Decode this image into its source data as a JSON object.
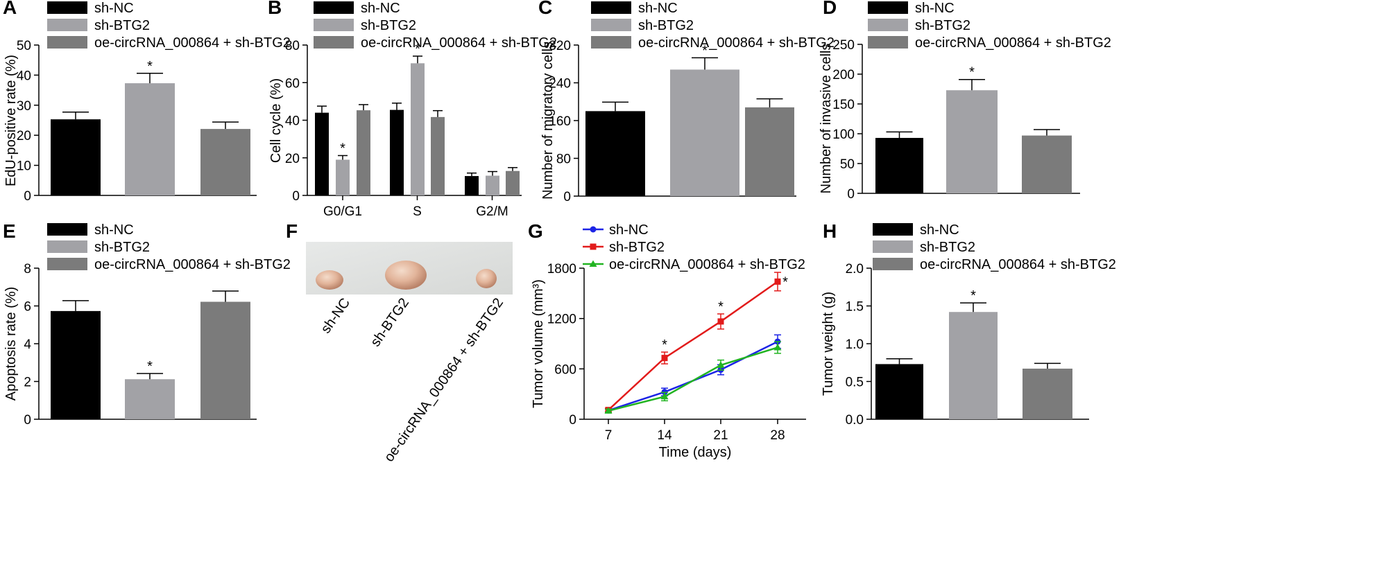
{
  "colors": {
    "sh_NC": "#000000",
    "sh_BTG2": "#a2a2a6",
    "oe_combo": "#7b7b7b",
    "line_sh_NC": "#1c24e6",
    "line_sh_BTG2": "#e21b1b",
    "line_oe_combo": "#22b422"
  },
  "legend_labels": [
    "sh-NC",
    "sh-BTG2",
    "oe-circRNA_000864 + sh-BTG2"
  ],
  "chart_data": [
    {
      "panel": "A",
      "type": "bar",
      "ylabel": "EdU-positive rate (%)",
      "ylim": [
        0,
        50
      ],
      "yticks": [
        0,
        10,
        20,
        30,
        40,
        50
      ],
      "categories": [
        "sh-NC",
        "sh-BTG2",
        "oe-circRNA_000864 + sh-BTG2"
      ],
      "values": [
        25.3,
        37.3,
        22.1
      ],
      "errors": [
        2.4,
        3.3,
        2.3
      ],
      "significance": [
        "",
        "*",
        ""
      ]
    },
    {
      "panel": "B",
      "type": "bar",
      "ylabel": "Cell cycle (%)",
      "ylim": [
        0,
        80
      ],
      "yticks": [
        0,
        20,
        40,
        60,
        80
      ],
      "categories": [
        "G0/G1",
        "S",
        "G2/M"
      ],
      "series": [
        {
          "name": "sh-NC",
          "values": [
            44,
            45.5,
            10.3
          ],
          "errors": [
            3.5,
            3.6,
            1.6
          ],
          "significance": [
            "",
            "",
            ""
          ]
        },
        {
          "name": "sh-BTG2",
          "values": [
            19,
            70.3,
            10.5
          ],
          "errors": [
            2.2,
            3.8,
            2.2
          ],
          "significance": [
            "*",
            "*",
            ""
          ]
        },
        {
          "name": "oe-circRNA_000864 + sh-BTG2",
          "values": [
            45.3,
            41.7,
            13
          ],
          "errors": [
            3.0,
            3.4,
            1.8
          ],
          "significance": [
            "",
            "",
            ""
          ]
        }
      ]
    },
    {
      "panel": "C",
      "type": "bar",
      "ylabel": "Number of migratory cells",
      "ylim": [
        0,
        320
      ],
      "yticks": [
        0,
        80,
        160,
        240,
        320
      ],
      "categories": [
        "sh-NC",
        "sh-BTG2",
        "oe-circRNA_000864 + sh-BTG2"
      ],
      "values": [
        180,
        268,
        188
      ],
      "errors": [
        19,
        25,
        18
      ],
      "significance": [
        "",
        "*",
        ""
      ]
    },
    {
      "panel": "D",
      "type": "bar",
      "ylabel": "Number of invasive cells",
      "ylim": [
        0,
        250
      ],
      "yticks": [
        0,
        50,
        100,
        150,
        200,
        250
      ],
      "categories": [
        "sh-NC",
        "sh-BTG2",
        "oe-circRNA_000864 + sh-BTG2"
      ],
      "values": [
        93,
        173,
        97
      ],
      "errors": [
        10,
        18,
        10
      ],
      "significance": [
        "",
        "*",
        ""
      ]
    },
    {
      "panel": "E",
      "type": "bar",
      "ylabel": "Apoptosis rate (%)",
      "ylim": [
        0,
        8
      ],
      "yticks": [
        0,
        2,
        4,
        6,
        8
      ],
      "categories": [
        "sh-NC",
        "sh-BTG2",
        "oe-circRNA_000864 + sh-BTG2"
      ],
      "values": [
        5.73,
        2.12,
        6.22
      ],
      "errors": [
        0.55,
        0.3,
        0.57
      ],
      "significance": [
        "",
        "*",
        ""
      ]
    },
    {
      "panel": "G",
      "type": "line",
      "xlabel": "Time (days)",
      "ylabel": "Tumor volume (mm³)",
      "ylim": [
        0,
        1800
      ],
      "yticks": [
        0,
        600,
        1200,
        1800
      ],
      "x": [
        7,
        14,
        21,
        28
      ],
      "series": [
        {
          "name": "sh-NC",
          "values": [
            105,
            325,
            590,
            925
          ],
          "errors": [
            20,
            45,
            60,
            80
          ],
          "significance": [
            "",
            "",
            "",
            ""
          ]
        },
        {
          "name": "sh-BTG2",
          "values": [
            110,
            730,
            1165,
            1640
          ],
          "errors": [
            20,
            70,
            90,
            110
          ],
          "significance": [
            "",
            "*",
            "*",
            "*"
          ]
        },
        {
          "name": "oe-circRNA_000864 + sh-BTG2",
          "values": [
            100,
            270,
            645,
            855
          ],
          "errors": [
            20,
            50,
            60,
            70
          ],
          "significance": [
            "",
            "",
            "",
            ""
          ]
        }
      ]
    },
    {
      "panel": "H",
      "type": "bar",
      "ylabel": "Tumor weight (g)",
      "ylim": [
        0,
        2.0
      ],
      "yticks": [
        "0.0",
        "0.5",
        "1.0",
        "1.5",
        "2.0"
      ],
      "categories": [
        "sh-NC",
        "sh-BTG2",
        "oe-circRNA_000864 + sh-BTG2"
      ],
      "values": [
        0.73,
        1.42,
        0.67
      ],
      "errors": [
        0.07,
        0.12,
        0.07
      ],
      "significance": [
        "",
        "*",
        ""
      ]
    }
  ],
  "photo_panel": {
    "panel": "F",
    "labels": [
      "sh-NC",
      "sh-BTG2",
      "oe-circRNA_000864 + sh-BTG2"
    ]
  }
}
